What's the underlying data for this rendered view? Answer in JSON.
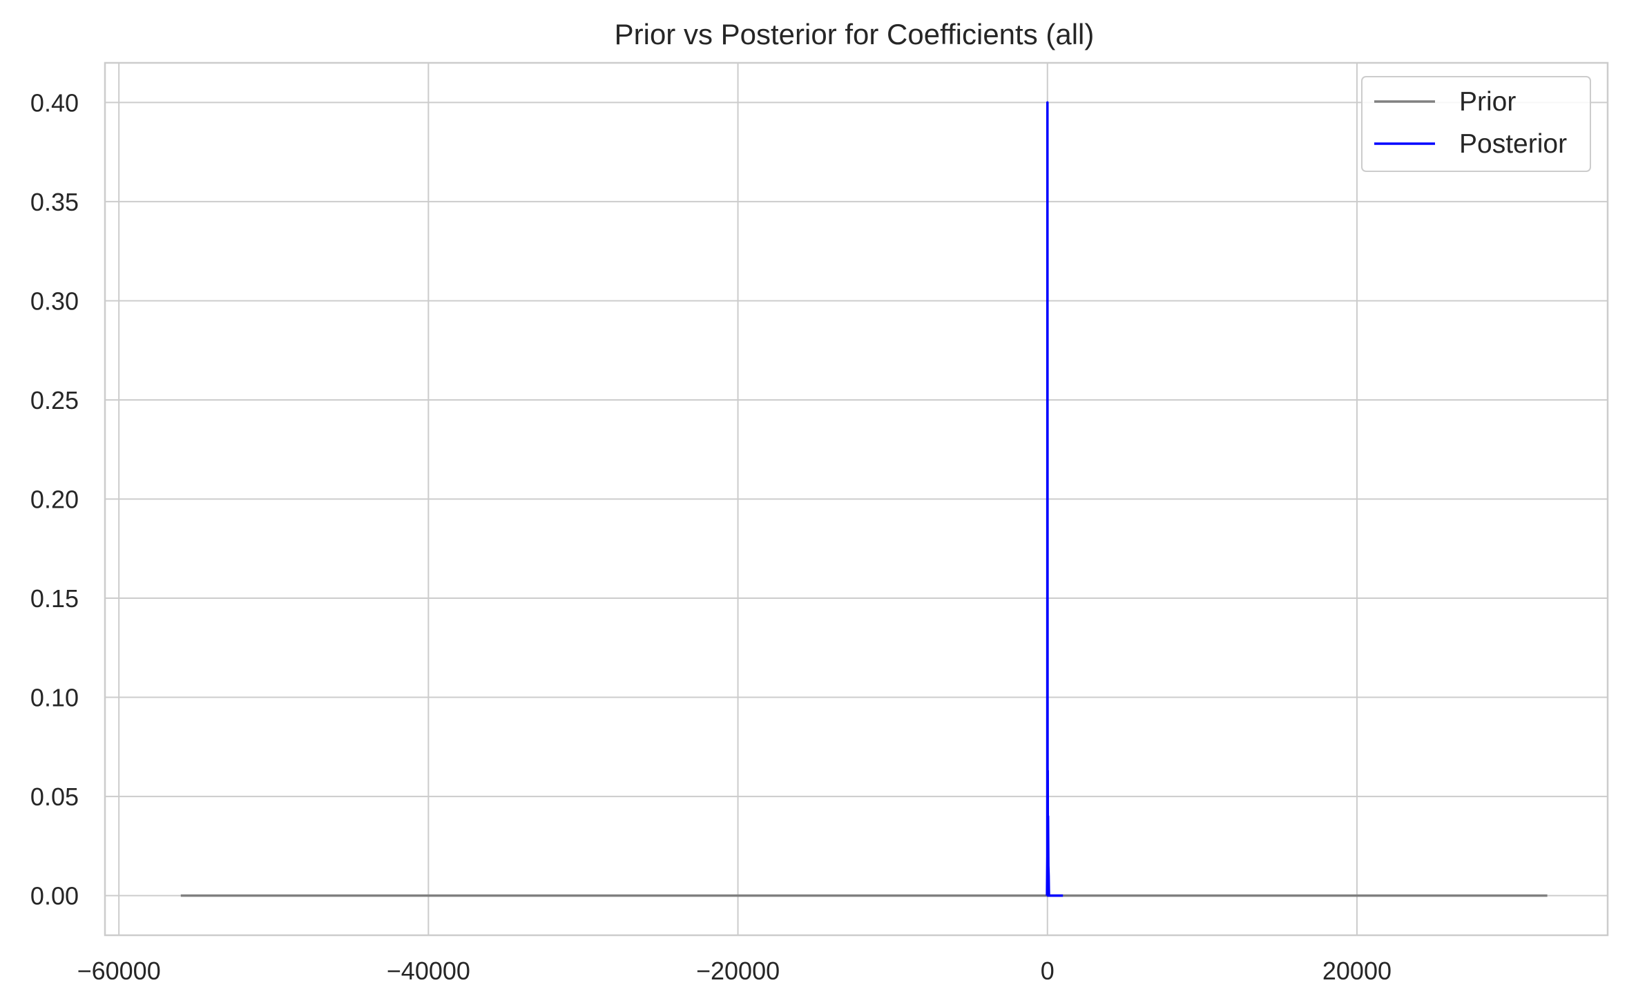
{
  "chart_data": {
    "type": "line",
    "title": "Prior vs Posterior for Coefficients (all)",
    "xlabel": "",
    "ylabel": "",
    "xlim": [
      -60900,
      36200
    ],
    "ylim": [
      -0.02,
      0.42
    ],
    "grid": true,
    "legend_position": "top-right",
    "x_ticks": [
      {
        "value": -60000,
        "label": "−60000"
      },
      {
        "value": -40000,
        "label": "−40000"
      },
      {
        "value": -20000,
        "label": "−20000"
      },
      {
        "value": 0,
        "label": "0"
      },
      {
        "value": 20000,
        "label": "20000"
      }
    ],
    "y_ticks": [
      {
        "value": 0.0,
        "label": "0.00"
      },
      {
        "value": 0.05,
        "label": "0.05"
      },
      {
        "value": 0.1,
        "label": "0.10"
      },
      {
        "value": 0.15,
        "label": "0.15"
      },
      {
        "value": 0.2,
        "label": "0.20"
      },
      {
        "value": 0.25,
        "label": "0.25"
      },
      {
        "value": 0.3,
        "label": "0.30"
      },
      {
        "value": 0.35,
        "label": "0.35"
      },
      {
        "value": 0.4,
        "label": "0.40"
      }
    ],
    "series": [
      {
        "name": "Prior",
        "color": "#808080",
        "x": [
          -56000,
          -20000,
          0,
          20000,
          32300
        ],
        "y": [
          0,
          0,
          0,
          0,
          0
        ]
      },
      {
        "name": "Posterior",
        "color": "#0000ff",
        "x": [
          -30,
          -10,
          0,
          10,
          20,
          30,
          40,
          60,
          80,
          100,
          150,
          200,
          400,
          1000
        ],
        "y": [
          0,
          0.02,
          0.4,
          0.02,
          0.063,
          0.0,
          0.04,
          0.015,
          0.01,
          0.0,
          0.0,
          0.0,
          0.0,
          0.0
        ]
      }
    ]
  }
}
